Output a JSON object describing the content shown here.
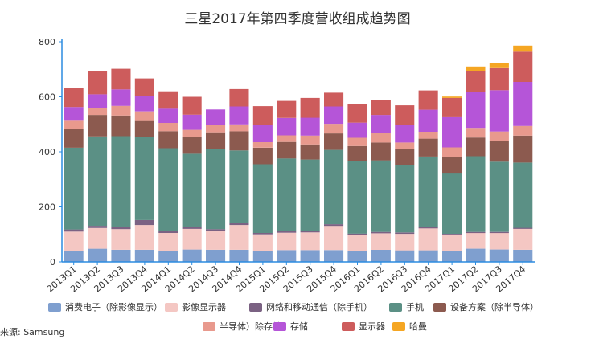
{
  "source": "来源: Samsung",
  "chart_data": {
    "type": "bar",
    "stacked": true,
    "title": "三星2017年第四季度营收组成趋势图",
    "xlabel": "",
    "ylabel": "",
    "ylim": [
      0,
      800
    ],
    "yticks": [
      0,
      200,
      400,
      600,
      800
    ],
    "grid": false,
    "legend_position": "bottom",
    "categories": [
      "2013Q1",
      "2013Q2",
      "2013Q3",
      "2013Q4",
      "2014Q1",
      "2014Q2",
      "2014Q3",
      "2014Q4",
      "2015Q1",
      "2015Q2",
      "2015Q3",
      "2015Q4",
      "2016Q1",
      "2016Q2",
      "2016Q3",
      "2016Q4",
      "2017Q1",
      "2017Q2",
      "2017Q3",
      "2017Q4"
    ],
    "series": [
      {
        "name": "消费电子（除影像显示）",
        "color": "#7f9fcf",
        "values": [
          38,
          48,
          44,
          44,
          40,
          45,
          44,
          44,
          40,
          43,
          43,
          43,
          40,
          44,
          42,
          42,
          38,
          48,
          45,
          44
        ]
      },
      {
        "name": "影像显示器",
        "color": "#f4c7c3",
        "values": [
          72,
          75,
          75,
          90,
          65,
          75,
          68,
          90,
          60,
          63,
          64,
          88,
          58,
          60,
          60,
          80,
          60,
          57,
          60,
          76
        ]
      },
      {
        "name": "网络和移动通信（除手机）",
        "color": "#7b6283",
        "values": [
          8,
          8,
          8,
          18,
          8,
          8,
          7,
          9,
          5,
          5,
          5,
          6,
          5,
          5,
          5,
          6,
          4,
          4,
          4,
          4
        ]
      },
      {
        "name": "手机",
        "color": "#5b9085",
        "values": [
          297,
          325,
          330,
          302,
          300,
          265,
          290,
          262,
          250,
          265,
          260,
          270,
          265,
          260,
          245,
          255,
          222,
          275,
          255,
          237
        ]
      },
      {
        "name": "设备方案（除半导体）",
        "color": "#8c5a4f",
        "values": [
          68,
          78,
          75,
          58,
          62,
          62,
          62,
          70,
          60,
          60,
          55,
          60,
          53,
          65,
          57,
          65,
          58,
          68,
          75,
          98
        ]
      },
      {
        "name": "半导体）除存储",
        "color": "#e8998d",
        "values": [
          30,
          25,
          35,
          35,
          30,
          25,
          28,
          25,
          20,
          24,
          32,
          35,
          30,
          35,
          25,
          25,
          34,
          35,
          35,
          35
        ]
      },
      {
        "name": "存储",
        "color": "#b555d8",
        "values": [
          50,
          50,
          60,
          55,
          52,
          55,
          55,
          65,
          63,
          63,
          65,
          63,
          55,
          65,
          65,
          80,
          110,
          130,
          150,
          160
        ]
      },
      {
        "name": "显示器",
        "color": "#cd5c5c",
        "values": [
          68,
          85,
          75,
          65,
          63,
          65,
          0,
          63,
          68,
          62,
          72,
          50,
          68,
          55,
          70,
          70,
          70,
          75,
          80,
          110
        ]
      },
      {
        "name": "哈曼",
        "color": "#f5a623",
        "values": [
          0,
          0,
          0,
          0,
          0,
          0,
          0,
          0,
          0,
          0,
          0,
          0,
          0,
          0,
          0,
          0,
          5,
          18,
          20,
          22
        ]
      }
    ]
  }
}
